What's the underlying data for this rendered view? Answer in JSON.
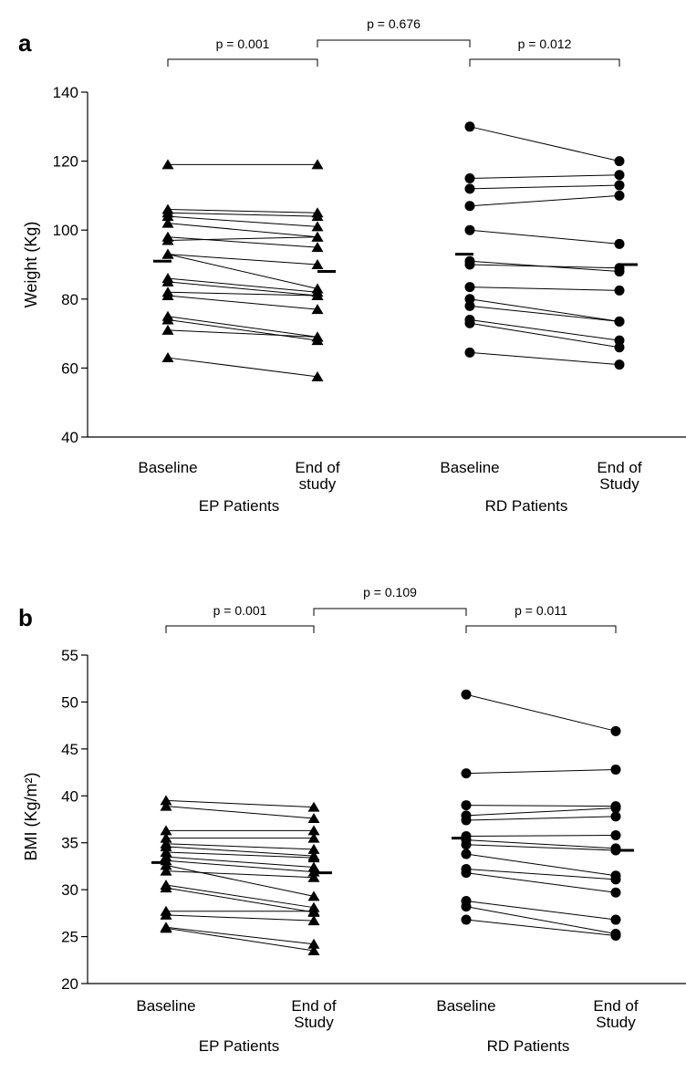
{
  "chart_data": [
    {
      "type": "scatter",
      "panel_label": "a",
      "ylabel": "Weight (Kg)",
      "ylim": [
        40,
        140
      ],
      "yticks": [
        40,
        60,
        80,
        100,
        120,
        140
      ],
      "categories": [
        {
          "lines": [
            "Baseline"
          ]
        },
        {
          "lines": [
            "End of",
            "study"
          ]
        },
        {
          "lines": [
            "Baseline"
          ]
        },
        {
          "lines": [
            "End of",
            "Study"
          ]
        }
      ],
      "groups": [
        "EP Patients",
        "RD Patients"
      ],
      "series": [
        {
          "name": "EP Patients",
          "marker": "triangle",
          "pairs": [
            [
              119,
              119
            ],
            [
              106,
              105
            ],
            [
              105,
              104
            ],
            [
              104,
              101
            ],
            [
              102,
              98
            ],
            [
              98,
              95
            ],
            [
              97,
              98
            ],
            [
              93,
              90
            ],
            [
              93,
              83
            ],
            [
              86,
              82
            ],
            [
              85,
              81
            ],
            [
              82,
              81
            ],
            [
              81,
              77
            ],
            [
              75,
              69
            ],
            [
              74,
              68
            ],
            [
              71,
              69
            ],
            [
              63,
              57.5
            ]
          ],
          "median": [
            91,
            88
          ]
        },
        {
          "name": "RD Patients",
          "marker": "circle",
          "pairs": [
            [
              130,
              120
            ],
            [
              115,
              116
            ],
            [
              112,
              113
            ],
            [
              107,
              110
            ],
            [
              100,
              96
            ],
            [
              91,
              88
            ],
            [
              90,
              89
            ],
            [
              83.5,
              82.5
            ],
            [
              80,
              73.5
            ],
            [
              78,
              73.5
            ],
            [
              74,
              68
            ],
            [
              73,
              66
            ],
            [
              64.5,
              61
            ]
          ],
          "median": [
            93,
            90
          ]
        }
      ],
      "comparisons": [
        {
          "label": "p = 0.001",
          "from": 0,
          "to": 1
        },
        {
          "label": "p = 0.012",
          "from": 2,
          "to": 3
        },
        {
          "label": "p = 0.676",
          "from": 1,
          "to": 2
        }
      ]
    },
    {
      "type": "scatter",
      "panel_label": "b",
      "ylabel": "BMI (Kg/m²)",
      "ylim": [
        20,
        55
      ],
      "yticks": [
        20,
        25,
        30,
        35,
        40,
        45,
        50,
        55
      ],
      "categories": [
        {
          "lines": [
            "Baseline"
          ]
        },
        {
          "lines": [
            "End of",
            "Study"
          ]
        },
        {
          "lines": [
            "Baseline"
          ]
        },
        {
          "lines": [
            "End of",
            "Study"
          ]
        }
      ],
      "groups": [
        "EP Patients",
        "RD Patients"
      ],
      "series": [
        {
          "name": "EP Patients",
          "marker": "triangle",
          "pairs": [
            [
              39.5,
              38.8
            ],
            [
              38.9,
              37.6
            ],
            [
              36.3,
              36.3
            ],
            [
              35.5,
              35.5
            ],
            [
              34.9,
              34.3
            ],
            [
              34.6,
              33.6
            ],
            [
              34.0,
              33.4
            ],
            [
              33.5,
              32.4
            ],
            [
              33.1,
              31.9
            ],
            [
              32.6,
              29.3
            ],
            [
              32.0,
              31.3
            ],
            [
              30.5,
              28.1
            ],
            [
              30.2,
              27.6
            ],
            [
              27.7,
              27.7
            ],
            [
              27.3,
              26.7
            ],
            [
              26.0,
              24.2
            ],
            [
              25.9,
              23.5
            ]
          ],
          "median": [
            32.9,
            31.8
          ]
        },
        {
          "name": "RD Patients",
          "marker": "circle",
          "pairs": [
            [
              50.8,
              46.9
            ],
            [
              42.4,
              42.8
            ],
            [
              39.0,
              38.9
            ],
            [
              37.9,
              38.7
            ],
            [
              37.4,
              37.8
            ],
            [
              35.7,
              35.8
            ],
            [
              35.3,
              34.4
            ],
            [
              34.8,
              34.2
            ],
            [
              33.8,
              31.5
            ],
            [
              32.2,
              31.1
            ],
            [
              31.8,
              29.7
            ],
            [
              28.8,
              26.8
            ],
            [
              28.2,
              25.3
            ],
            [
              26.8,
              25.1
            ]
          ],
          "median": [
            35.5,
            34.2
          ]
        }
      ],
      "comparisons": [
        {
          "label": "p = 0.001",
          "from": 0,
          "to": 1
        },
        {
          "label": "p = 0.011",
          "from": 2,
          "to": 3
        },
        {
          "label": "p = 0.109",
          "from": 1,
          "to": 2
        }
      ]
    }
  ]
}
